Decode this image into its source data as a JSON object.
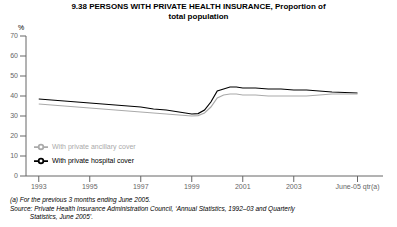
{
  "chart_data": {
    "type": "line",
    "title": "9.38   PERSONS WITH PRIVATE HEALTH INSURANCE, Proportion of",
    "subtitle": "total population",
    "y_label": "%",
    "x": [
      1993,
      1993.5,
      1994,
      1994.5,
      1995,
      1995.5,
      1996,
      1996.5,
      1997,
      1997.5,
      1998,
      1998.5,
      1999,
      1999.25,
      1999.5,
      1999.75,
      2000,
      2000.25,
      2000.5,
      2000.75,
      2001,
      2001.5,
      2002,
      2002.5,
      2003,
      2003.5,
      2004,
      2004.5,
      2005.5
    ],
    "series": [
      {
        "name": "With private hospital cover",
        "color": "#000000",
        "values": [
          38.5,
          38.0,
          37.5,
          37.0,
          36.5,
          36.0,
          35.5,
          35.0,
          34.5,
          33.5,
          33.0,
          32.0,
          31.0,
          31.2,
          33.0,
          37.0,
          42.5,
          43.5,
          44.5,
          44.5,
          44.0,
          44.0,
          43.5,
          43.5,
          43.0,
          43.0,
          42.5,
          42.0,
          41.5
        ]
      },
      {
        "name": "With private ancillary cover",
        "color": "#aaaaaa",
        "values": [
          36.0,
          35.5,
          35.0,
          34.5,
          34.0,
          33.5,
          33.0,
          32.5,
          32.0,
          31.5,
          31.0,
          30.5,
          30.0,
          30.2,
          31.5,
          34.5,
          39.0,
          40.5,
          41.0,
          41.0,
          40.5,
          40.5,
          40.0,
          40.0,
          40.0,
          40.0,
          40.5,
          41.0,
          41.0
        ]
      }
    ],
    "xlim": [
      1992.5,
      2006.5
    ],
    "xticks": [
      1993,
      1995,
      1997,
      1999,
      2001,
      2003,
      {
        "value": 2005.5,
        "label": "June-05 qtr(a)"
      }
    ],
    "ylim": [
      0,
      70
    ],
    "yticks": [
      0,
      10,
      20,
      30,
      40,
      50,
      60,
      70
    ],
    "grid": false,
    "legend": "lower left",
    "annotations": [
      "(a) For the previous 3 months ending June 2005.",
      "Source: Private Health Insurance Administration Council, ‘Annual Statistics, 1992–03 and Quarterly",
      "           Statistics, June 2005’."
    ]
  }
}
